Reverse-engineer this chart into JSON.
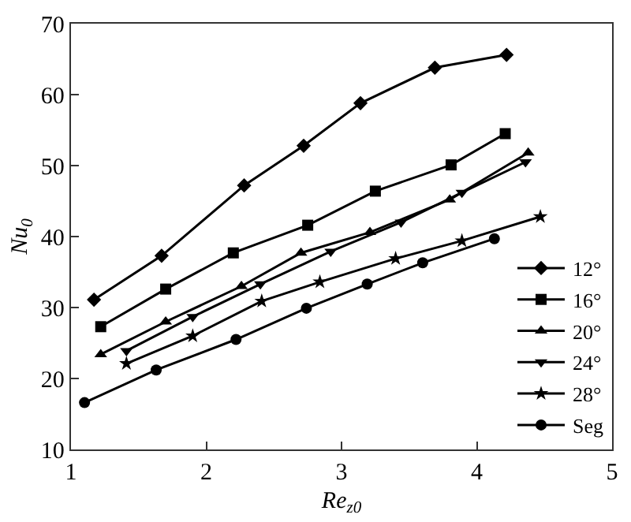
{
  "chart_data": {
    "type": "line",
    "xlabel": "Re$_{z0}$",
    "ylabel": "Nu$_{0}$",
    "xlim": [
      1,
      5
    ],
    "ylim": [
      10,
      70
    ],
    "xticks": [
      1,
      2,
      3,
      4,
      5
    ],
    "yticks": [
      10,
      20,
      30,
      40,
      50,
      60,
      70
    ],
    "legend": "bottom right",
    "line_style": "solid",
    "series": [
      {
        "name": "12°",
        "color": "#000000",
        "marker": "diamond",
        "x": [
          1.17,
          1.67,
          2.28,
          2.72,
          3.14,
          3.69,
          4.22
        ],
        "values": [
          31.1,
          37.3,
          47.2,
          52.8,
          58.8,
          63.8,
          65.6
        ]
      },
      {
        "name": "16°",
        "color": "#000000",
        "marker": "square",
        "x": [
          1.22,
          1.7,
          2.2,
          2.75,
          3.25,
          3.81,
          4.21
        ],
        "values": [
          27.3,
          32.6,
          37.7,
          41.6,
          46.4,
          50.1,
          54.5
        ]
      },
      {
        "name": "20°",
        "color": "#000000",
        "marker": "triangle",
        "x": [
          1.22,
          1.7,
          2.26,
          2.7,
          3.21,
          3.8,
          4.38
        ],
        "values": [
          23.4,
          28.0,
          33.0,
          37.7,
          40.6,
          45.2,
          51.8
        ]
      },
      {
        "name": "24°",
        "color": "#000000",
        "marker": "triangle-down",
        "x": [
          1.41,
          1.9,
          2.4,
          2.92,
          3.44,
          3.89,
          4.36
        ],
        "values": [
          23.9,
          28.7,
          33.3,
          37.9,
          42.0,
          46.2,
          50.5
        ]
      },
      {
        "name": "28°",
        "color": "#000000",
        "marker": "star",
        "x": [
          1.41,
          1.9,
          2.41,
          2.84,
          3.4,
          3.89,
          4.47
        ],
        "values": [
          22.1,
          26.0,
          30.9,
          33.6,
          36.9,
          39.4,
          42.8
        ]
      },
      {
        "name": "Seg",
        "color": "#000000",
        "marker": "circle",
        "x": [
          1.1,
          1.63,
          2.22,
          2.74,
          3.19,
          3.6,
          4.13
        ],
        "values": [
          16.6,
          21.2,
          25.5,
          29.9,
          33.3,
          36.3,
          39.7
        ]
      }
    ]
  }
}
